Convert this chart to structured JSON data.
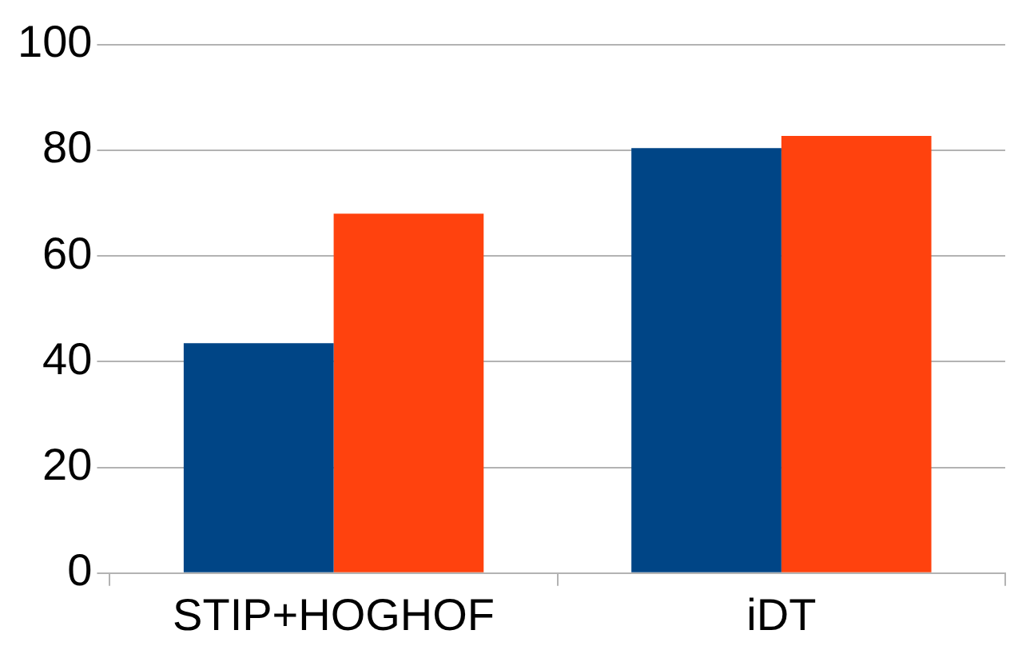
{
  "chart_data": {
    "type": "bar",
    "categories": [
      "STIP+HOGHOF",
      "iDT"
    ],
    "series": [
      {
        "color": "#004586",
        "values": [
          43.5,
          80.4
        ]
      },
      {
        "color": "#ff420e",
        "values": [
          68,
          82.7
        ]
      }
    ],
    "ylim": [
      0,
      100
    ],
    "yticks": [
      0,
      20,
      40,
      60,
      80,
      100
    ],
    "grid": "y",
    "legend": false
  }
}
